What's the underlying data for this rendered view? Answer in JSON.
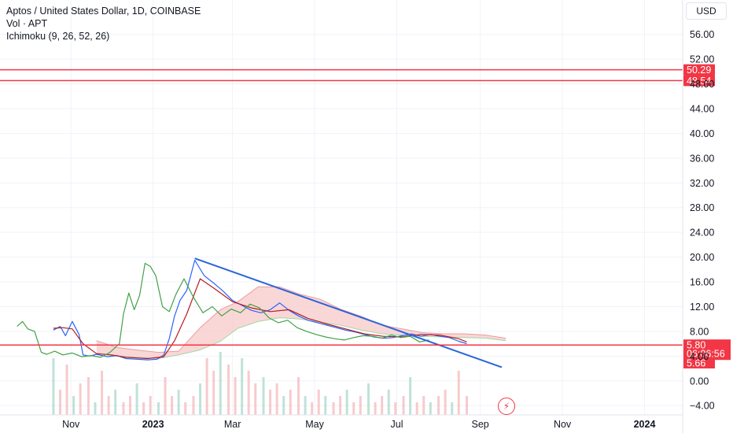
{
  "legend": {
    "title": "Aptos / United States Dollar, 1D, COINBASE",
    "volume": "Vol · APT",
    "ichimoku": "Ichimoku (9, 26, 52, 26)"
  },
  "currency_button": "USD",
  "colors": {
    "accent_red": "#f23645",
    "tenkan": "#2962ff",
    "kijun": "#b71c1c",
    "lagging": "#43a047",
    "cloud_bear": "#f7c9c9",
    "cloud_bull": "#c8e6c9",
    "trendline": "#2b66d9",
    "grid": "#f0f3fa",
    "text": "#131722"
  },
  "chart_data": {
    "type": "line",
    "title": "Aptos / United States Dollar, 1D, COINBASE",
    "xlabel": "",
    "ylabel": "",
    "x_tick_labels": [
      "Nov",
      "2023",
      "Mar",
      "May",
      "Jul",
      "Sep",
      "Nov",
      "2024"
    ],
    "y_tick_labels": [
      "56.00",
      "52.00",
      "48.00",
      "44.00",
      "40.00",
      "36.00",
      "32.00",
      "28.00",
      "24.00",
      "20.00",
      "16.00",
      "12.00",
      "8.00",
      "4.00",
      "0.00",
      "−4.00"
    ],
    "ylim": [
      -5.5,
      58
    ],
    "grid": true,
    "series": [
      {
        "style": "line",
        "x": [
          "2022-10-19",
          "2022-10-24",
          "2022-10-28",
          "2022-11-02",
          "2022-11-07",
          "2022-11-10",
          "2022-11-15",
          "2022-11-20",
          "2022-11-28",
          "2022-12-05",
          "2022-12-12",
          "2022-12-20",
          "2022-12-28",
          "2023-01-04",
          "2023-01-09",
          "2023-01-13",
          "2023-01-17",
          "2023-01-21",
          "2023-01-26",
          "2023-02-01",
          "2023-02-08",
          "2023-02-15",
          "2023-02-22",
          "2023-03-01",
          "2023-03-08",
          "2023-03-15",
          "2023-03-22",
          "2023-03-29",
          "2023-04-05",
          "2023-04-12",
          "2023-04-19",
          "2023-04-26",
          "2023-05-03",
          "2023-05-10",
          "2023-05-17",
          "2023-05-24",
          "2023-05-31",
          "2023-06-07",
          "2023-06-14",
          "2023-06-21",
          "2023-06-28",
          "2023-07-05",
          "2023-07-12",
          "2023-07-19",
          "2023-07-26",
          "2023-08-02",
          "2023-08-09",
          "2023-08-16",
          "2023-08-22"
        ],
        "values": [
          8.2,
          8.8,
          7.3,
          9.6,
          7.5,
          4.2,
          4.0,
          4.3,
          3.9,
          4.1,
          3.6,
          3.5,
          3.4,
          3.5,
          4.2,
          6.8,
          10.5,
          13.0,
          14.6,
          19.5,
          17.0,
          15.8,
          14.5,
          13.0,
          12.2,
          11.4,
          11.0,
          11.5,
          12.6,
          11.4,
          10.5,
          9.8,
          9.4,
          9.0,
          8.6,
          8.2,
          7.9,
          7.5,
          7.1,
          6.9,
          7.0,
          7.3,
          7.6,
          7.2,
          7.5,
          7.2,
          7.0,
          6.4,
          6.0
        ]
      },
      {
        "style": "line",
        "x": [
          "2022-10-19",
          "2022-10-26",
          "2022-11-02",
          "2022-11-10",
          "2022-11-20",
          "2022-12-01",
          "2022-12-12",
          "2022-12-28",
          "2023-01-09",
          "2023-01-17",
          "2023-01-26",
          "2023-02-05",
          "2023-02-15",
          "2023-03-01",
          "2023-03-15",
          "2023-03-29",
          "2023-04-12",
          "2023-04-26",
          "2023-05-10",
          "2023-05-24",
          "2023-06-07",
          "2023-06-21",
          "2023-07-05",
          "2023-07-19",
          "2023-08-02",
          "2023-08-16",
          "2023-08-22"
        ],
        "values": [
          8.5,
          8.6,
          8.4,
          6.0,
          4.4,
          4.2,
          3.8,
          3.6,
          3.9,
          6.5,
          10.8,
          16.5,
          15.0,
          12.8,
          11.8,
          11.2,
          11.5,
          10.1,
          9.2,
          8.4,
          7.6,
          7.2,
          7.1,
          7.5,
          7.4,
          6.8,
          6.3
        ]
      },
      {
        "style": "line",
        "x": [
          "2022-09-22",
          "2022-09-26",
          "2022-09-30",
          "2022-10-05",
          "2022-10-10",
          "2022-10-14",
          "2022-10-20",
          "2022-10-26",
          "2022-11-02",
          "2022-11-09",
          "2022-11-16",
          "2022-11-23",
          "2022-11-30",
          "2022-12-07",
          "2022-12-10",
          "2022-12-14",
          "2022-12-18",
          "2022-12-22",
          "2022-12-26",
          "2022-12-30",
          "2023-01-03",
          "2023-01-08",
          "2023-01-13",
          "2023-01-18",
          "2023-01-24",
          "2023-01-31",
          "2023-02-07",
          "2023-02-14",
          "2023-02-21",
          "2023-02-28",
          "2023-03-07",
          "2023-03-14",
          "2023-03-21",
          "2023-03-28",
          "2023-04-04",
          "2023-04-11",
          "2023-04-18",
          "2023-04-25",
          "2023-05-02",
          "2023-05-09",
          "2023-05-16",
          "2023-05-23",
          "2023-05-30",
          "2023-06-06",
          "2023-06-13",
          "2023-06-20",
          "2023-06-27",
          "2023-07-04",
          "2023-07-11",
          "2023-07-18",
          "2023-07-25"
        ],
        "values": [
          8.8,
          9.6,
          8.4,
          8.0,
          4.6,
          4.3,
          4.8,
          4.2,
          4.5,
          3.9,
          4.1,
          3.8,
          4.6,
          6.0,
          10.8,
          14.2,
          11.5,
          13.8,
          19.0,
          18.5,
          17.0,
          12.0,
          11.2,
          14.0,
          16.5,
          13.5,
          11.0,
          12.0,
          10.5,
          11.6,
          11.0,
          12.4,
          11.8,
          10.2,
          9.4,
          9.8,
          8.6,
          8.0,
          7.5,
          7.1,
          6.8,
          6.6,
          7.0,
          7.3,
          7.2,
          6.9,
          7.4,
          7.0,
          7.2,
          6.3,
          6.6
        ]
      },
      {
        "style": "cloud",
        "x": [
          "2022-11-20",
          "2022-12-05",
          "2022-12-20",
          "2023-01-05",
          "2023-01-20",
          "2023-02-05",
          "2023-02-20",
          "2023-03-05",
          "2023-03-20",
          "2023-04-05",
          "2023-04-20",
          "2023-05-05",
          "2023-05-20",
          "2023-06-05",
          "2023-06-20",
          "2023-07-05",
          "2023-07-20",
          "2023-08-05",
          "2023-08-20",
          "2023-09-05",
          "2023-09-20"
        ],
        "upper": [
          6.5,
          5.4,
          5.0,
          4.6,
          4.8,
          8.6,
          11.5,
          12.8,
          15.2,
          15.2,
          14.0,
          13.2,
          11.6,
          10.4,
          9.0,
          8.4,
          7.8,
          7.6,
          7.6,
          7.4,
          6.9
        ],
        "lower": [
          4.4,
          4.0,
          3.8,
          3.6,
          4.2,
          5.0,
          6.4,
          8.5,
          9.6,
          10.2,
          10.0,
          9.5,
          9.0,
          8.2,
          7.6,
          7.4,
          7.2,
          7.1,
          7.0,
          6.9,
          6.5
        ]
      },
      {
        "style": "trendline",
        "x": [
          "2023-02-01",
          "2023-09-17"
        ],
        "values": [
          19.8,
          2.2
        ]
      },
      {
        "style": "volume",
        "x_start": "2022-10-19",
        "x_end": "2023-08-22",
        "values": [
          0.9,
          0.4,
          0.8,
          0.3,
          0.5,
          0.6,
          0.2,
          0.7,
          0.3,
          0.4,
          0.2,
          0.3,
          0.5,
          0.2,
          0.3,
          0.2,
          0.6,
          0.3,
          0.4,
          0.2,
          0.3,
          0.5,
          0.9,
          0.7,
          1.0,
          0.8,
          0.6,
          0.9,
          0.7,
          0.5,
          0.6,
          0.4,
          0.5,
          0.3,
          0.4,
          0.6,
          0.3,
          0.2,
          0.4,
          0.3,
          0.2,
          0.3,
          0.4,
          0.2,
          0.3,
          0.5,
          0.2,
          0.3,
          0.4,
          0.2,
          0.3,
          0.6,
          0.2,
          0.3,
          0.2,
          0.3,
          0.4,
          0.2,
          0.7,
          0.3
        ]
      }
    ],
    "horizontal_levels": [
      {
        "value": 50.29,
        "label": "50.29"
      },
      {
        "value": 48.54,
        "label": "48.54"
      },
      {
        "value": 5.8,
        "label": "5.80"
      }
    ],
    "price_labels": [
      {
        "label": "5.80",
        "value": 5.8
      },
      {
        "label": "06:06:56",
        "value": 4.4
      },
      {
        "label": "5.66",
        "value": 2.9
      }
    ]
  }
}
